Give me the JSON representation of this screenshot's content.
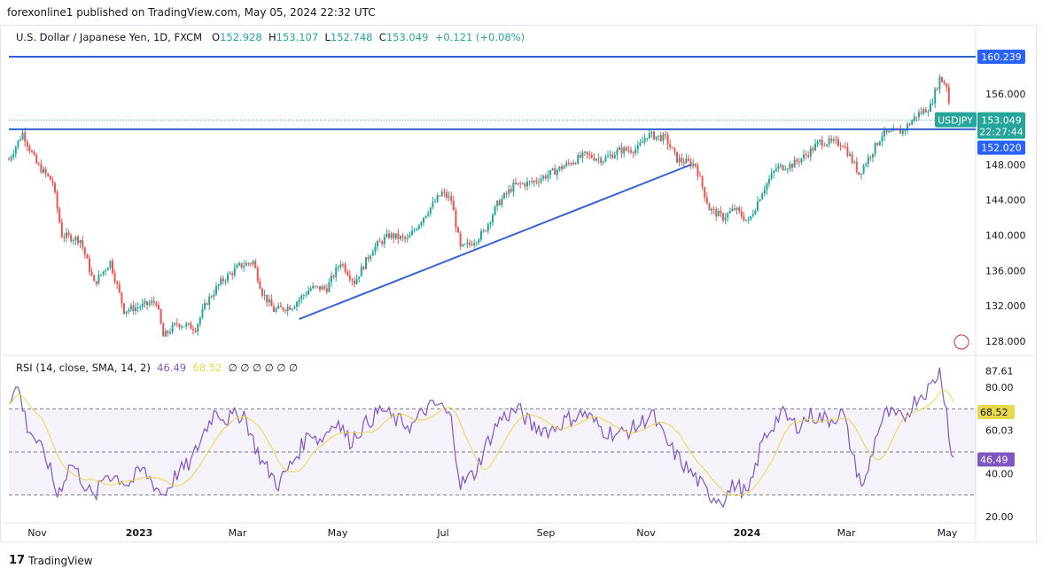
{
  "publisher": "forexonline1 published on TradingView.com, May 05, 2024 22:32 UTC",
  "symbol": {
    "name": "U.S. Dollar / Japanese Yen, 1D, FXCM",
    "o_label": "O",
    "o": "152.928",
    "h_label": "H",
    "h": "153.107",
    "l_label": "L",
    "l": "152.748",
    "c_label": "C",
    "c": "153.049",
    "change": "+0.121 (+0.08%)"
  },
  "rsi_legend": {
    "name": "RSI (14, close, SMA, 14, 2)",
    "rsi": "46.49",
    "sma": "68.52",
    "empties": "∅ ∅ ∅ ∅ ∅ ∅"
  },
  "footer": "TradingView",
  "colors": {
    "up": "#26a69a",
    "down": "#ef5350",
    "line": "#2962ff",
    "rsi": "#7e57c2",
    "sma": "#e8d84a"
  },
  "chart_data": [
    {
      "type": "candlestick",
      "title": "U.S. Dollar / Japanese Yen, 1D, FXCM",
      "ylim": [
        126,
        162
      ],
      "y_ticks": [
        "128.000",
        "132.000",
        "136.000",
        "140.000",
        "144.000",
        "148.000",
        "156.000"
      ],
      "x_ticks": [
        "Nov",
        "2023",
        "Mar",
        "May",
        "Jul",
        "Sep",
        "Nov",
        "2024",
        "Mar",
        "May"
      ],
      "close_path": [
        [
          0,
          148.6
        ],
        [
          6,
          151.6
        ],
        [
          12,
          148.1
        ],
        [
          19,
          146
        ],
        [
          23,
          140
        ],
        [
          31,
          139.5
        ],
        [
          37,
          134.5
        ],
        [
          44,
          137
        ],
        [
          50,
          131.5
        ],
        [
          58,
          132
        ],
        [
          64,
          132.5
        ],
        [
          67,
          128.5
        ],
        [
          73,
          130
        ],
        [
          81,
          129.5
        ],
        [
          86,
          132.5
        ],
        [
          92,
          134.7
        ],
        [
          100,
          136.5
        ],
        [
          106,
          137
        ],
        [
          110,
          133.5
        ],
        [
          115,
          131.5
        ],
        [
          123,
          132
        ],
        [
          131,
          134
        ],
        [
          138,
          134
        ],
        [
          144,
          137
        ],
        [
          150,
          134.7
        ],
        [
          158,
          138.5
        ],
        [
          165,
          140
        ],
        [
          173,
          139.5
        ],
        [
          181,
          142.5
        ],
        [
          188,
          144.8
        ],
        [
          192,
          144
        ],
        [
          196,
          138.5
        ],
        [
          200,
          139
        ],
        [
          206,
          140.3
        ],
        [
          212,
          143.5
        ],
        [
          219,
          145.6
        ],
        [
          227,
          146
        ],
        [
          235,
          147
        ],
        [
          242,
          148
        ],
        [
          250,
          149.1
        ],
        [
          258,
          148.6
        ],
        [
          265,
          149.6
        ],
        [
          273,
          149.8
        ],
        [
          277,
          151.4
        ],
        [
          285,
          151
        ],
        [
          290,
          148.6
        ],
        [
          298,
          148
        ],
        [
          304,
          143
        ],
        [
          310,
          142
        ],
        [
          315,
          143
        ],
        [
          321,
          141.5
        ],
        [
          327,
          145
        ],
        [
          333,
          147.6
        ],
        [
          340,
          148
        ],
        [
          346,
          149.1
        ],
        [
          352,
          150.6
        ],
        [
          362,
          150.4
        ],
        [
          369,
          147
        ],
        [
          375,
          149.6
        ],
        [
          379,
          151.4
        ],
        [
          388,
          151.8
        ],
        [
          394,
          153.6
        ],
        [
          400,
          154.6
        ],
        [
          404,
          157.8
        ],
        [
          407,
          157
        ],
        [
          409,
          153.1
        ]
      ],
      "horizontal_lines": [
        {
          "value": 160.239,
          "label": "160.239"
        },
        {
          "value": 152.02,
          "label": "152.020"
        }
      ],
      "trendline": [
        [
          126,
          130.5
        ],
        [
          296,
          148
        ]
      ],
      "last_price": {
        "value": 153.049,
        "label": "153.049",
        "countdown": "22:27:44",
        "symbol": "USDJPY"
      }
    },
    {
      "type": "line",
      "title": "RSI (14, close, SMA, 14, 2)",
      "ylim": [
        20,
        90
      ],
      "y_ticks": [
        "20.00",
        "40.00",
        "60.03",
        "80.00"
      ],
      "bands": [
        30,
        50,
        70
      ],
      "rsi": [
        [
          0,
          75
        ],
        [
          4,
          80
        ],
        [
          8,
          62
        ],
        [
          12,
          55
        ],
        [
          17,
          45
        ],
        [
          21,
          30
        ],
        [
          27,
          45
        ],
        [
          33,
          35
        ],
        [
          37,
          28
        ],
        [
          42,
          40
        ],
        [
          48,
          38
        ],
        [
          52,
          35
        ],
        [
          58,
          42
        ],
        [
          63,
          35
        ],
        [
          67,
          30
        ],
        [
          73,
          40
        ],
        [
          79,
          45
        ],
        [
          85,
          60
        ],
        [
          90,
          70
        ],
        [
          94,
          65
        ],
        [
          102,
          68
        ],
        [
          106,
          55
        ],
        [
          110,
          45
        ],
        [
          117,
          35
        ],
        [
          123,
          45
        ],
        [
          131,
          60
        ],
        [
          135,
          55
        ],
        [
          142,
          65
        ],
        [
          148,
          55
        ],
        [
          154,
          62
        ],
        [
          162,
          70
        ],
        [
          167,
          65
        ],
        [
          175,
          62
        ],
        [
          181,
          70
        ],
        [
          187,
          72
        ],
        [
          192,
          65
        ],
        [
          196,
          35
        ],
        [
          202,
          40
        ],
        [
          208,
          55
        ],
        [
          213,
          65
        ],
        [
          221,
          70
        ],
        [
          227,
          62
        ],
        [
          235,
          60
        ],
        [
          242,
          65
        ],
        [
          250,
          68
        ],
        [
          258,
          60
        ],
        [
          265,
          58
        ],
        [
          273,
          62
        ],
        [
          279,
          68
        ],
        [
          285,
          55
        ],
        [
          292,
          45
        ],
        [
          298,
          38
        ],
        [
          304,
          30
        ],
        [
          310,
          28
        ],
        [
          315,
          35
        ],
        [
          321,
          30
        ],
        [
          327,
          55
        ],
        [
          335,
          68
        ],
        [
          342,
          62
        ],
        [
          348,
          67
        ],
        [
          356,
          65
        ],
        [
          362,
          68
        ],
        [
          367,
          45
        ],
        [
          371,
          33
        ],
        [
          377,
          60
        ],
        [
          381,
          68
        ],
        [
          388,
          65
        ],
        [
          394,
          75
        ],
        [
          400,
          80
        ],
        [
          404,
          88
        ],
        [
          407,
          70
        ],
        [
          409,
          48
        ],
        [
          410,
          46.5
        ]
      ],
      "rsi_value": "46.49",
      "sma_value": "68.52",
      "max_label": "87.61"
    }
  ]
}
